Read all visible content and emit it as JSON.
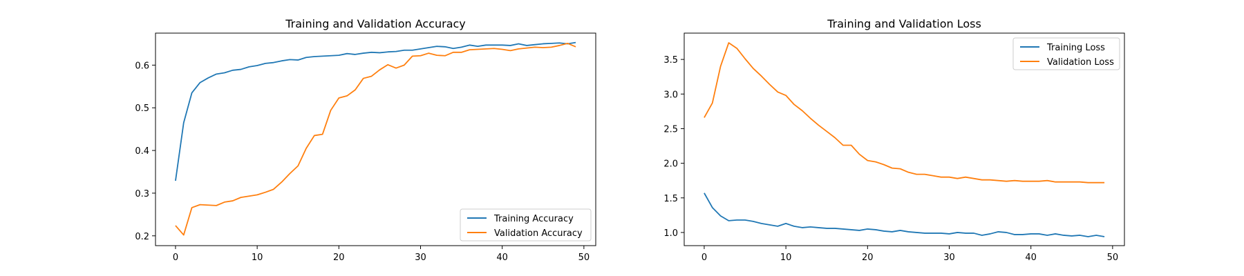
{
  "chart_data": [
    {
      "type": "line",
      "title": "Training and Validation Accuracy",
      "xlabel": "",
      "ylabel": "",
      "xlim": [
        -2.45,
        51.45
      ],
      "ylim": [
        0.177,
        0.675
      ],
      "xticks": [
        0,
        10,
        20,
        30,
        40,
        50
      ],
      "yticks": [
        0.2,
        0.3,
        0.4,
        0.5,
        0.6
      ],
      "grid": false,
      "legend_position": "lower-right",
      "x": [
        0,
        1,
        2,
        3,
        4,
        5,
        6,
        7,
        8,
        9,
        10,
        11,
        12,
        13,
        14,
        15,
        16,
        17,
        18,
        19,
        20,
        21,
        22,
        23,
        24,
        25,
        26,
        27,
        28,
        29,
        30,
        31,
        32,
        33,
        34,
        35,
        36,
        37,
        38,
        39,
        40,
        41,
        42,
        43,
        44,
        45,
        46,
        47,
        48,
        49
      ],
      "series": [
        {
          "name": "Training Accuracy",
          "color": "#1f77b4",
          "values": [
            0.329,
            0.465,
            0.535,
            0.559,
            0.57,
            0.579,
            0.582,
            0.588,
            0.59,
            0.596,
            0.599,
            0.604,
            0.606,
            0.61,
            0.613,
            0.612,
            0.618,
            0.62,
            0.621,
            0.622,
            0.623,
            0.627,
            0.625,
            0.628,
            0.63,
            0.629,
            0.631,
            0.632,
            0.635,
            0.635,
            0.638,
            0.641,
            0.644,
            0.643,
            0.639,
            0.642,
            0.647,
            0.644,
            0.647,
            0.647,
            0.647,
            0.646,
            0.65,
            0.646,
            0.648,
            0.65,
            0.651,
            0.652,
            0.65,
            0.653
          ]
        },
        {
          "name": "Validation Accuracy",
          "color": "#ff7f0e",
          "values": [
            0.224,
            0.202,
            0.266,
            0.273,
            0.272,
            0.271,
            0.279,
            0.282,
            0.29,
            0.293,
            0.296,
            0.302,
            0.309,
            0.326,
            0.346,
            0.364,
            0.405,
            0.435,
            0.438,
            0.494,
            0.523,
            0.528,
            0.542,
            0.569,
            0.574,
            0.589,
            0.601,
            0.593,
            0.6,
            0.621,
            0.622,
            0.628,
            0.623,
            0.622,
            0.63,
            0.63,
            0.636,
            0.637,
            0.638,
            0.639,
            0.637,
            0.634,
            0.638,
            0.64,
            0.642,
            0.641,
            0.642,
            0.646,
            0.651,
            0.643
          ]
        }
      ]
    },
    {
      "type": "line",
      "title": "Training and Validation Loss",
      "xlabel": "",
      "ylabel": "",
      "xlim": [
        -2.45,
        51.45
      ],
      "ylim": [
        0.81,
        3.88
      ],
      "xticks": [
        0,
        10,
        20,
        30,
        40,
        50
      ],
      "yticks": [
        1.0,
        1.5,
        2.0,
        2.5,
        3.0,
        3.5
      ],
      "ytick_labels": [
        "1.0",
        "1.5",
        "2.0",
        "2.5",
        "3.0",
        "3.5"
      ],
      "grid": false,
      "legend_position": "upper-right",
      "x": [
        0,
        1,
        2,
        3,
        4,
        5,
        6,
        7,
        8,
        9,
        10,
        11,
        12,
        13,
        14,
        15,
        16,
        17,
        18,
        19,
        20,
        21,
        22,
        23,
        24,
        25,
        26,
        27,
        28,
        29,
        30,
        31,
        32,
        33,
        34,
        35,
        36,
        37,
        38,
        39,
        40,
        41,
        42,
        43,
        44,
        45,
        46,
        47,
        48,
        49
      ],
      "series": [
        {
          "name": "Training Loss",
          "color": "#1f77b4",
          "values": [
            1.57,
            1.36,
            1.24,
            1.17,
            1.18,
            1.18,
            1.16,
            1.13,
            1.11,
            1.09,
            1.13,
            1.09,
            1.07,
            1.08,
            1.07,
            1.06,
            1.06,
            1.05,
            1.04,
            1.03,
            1.05,
            1.04,
            1.02,
            1.01,
            1.03,
            1.01,
            1.0,
            0.99,
            0.99,
            0.99,
            0.98,
            1.0,
            0.99,
            0.99,
            0.96,
            0.98,
            1.01,
            1.0,
            0.97,
            0.97,
            0.98,
            0.98,
            0.96,
            0.98,
            0.96,
            0.95,
            0.96,
            0.94,
            0.96,
            0.94
          ]
        },
        {
          "name": "Validation Loss",
          "color": "#ff7f0e",
          "values": [
            2.66,
            2.87,
            3.4,
            3.74,
            3.66,
            3.51,
            3.37,
            3.26,
            3.14,
            3.03,
            2.98,
            2.85,
            2.76,
            2.65,
            2.55,
            2.46,
            2.37,
            2.26,
            2.26,
            2.13,
            2.04,
            2.02,
            1.98,
            1.93,
            1.92,
            1.87,
            1.84,
            1.84,
            1.82,
            1.8,
            1.8,
            1.78,
            1.8,
            1.78,
            1.76,
            1.76,
            1.75,
            1.74,
            1.75,
            1.74,
            1.74,
            1.74,
            1.75,
            1.73,
            1.73,
            1.73,
            1.73,
            1.72,
            1.72,
            1.72
          ]
        }
      ]
    }
  ]
}
